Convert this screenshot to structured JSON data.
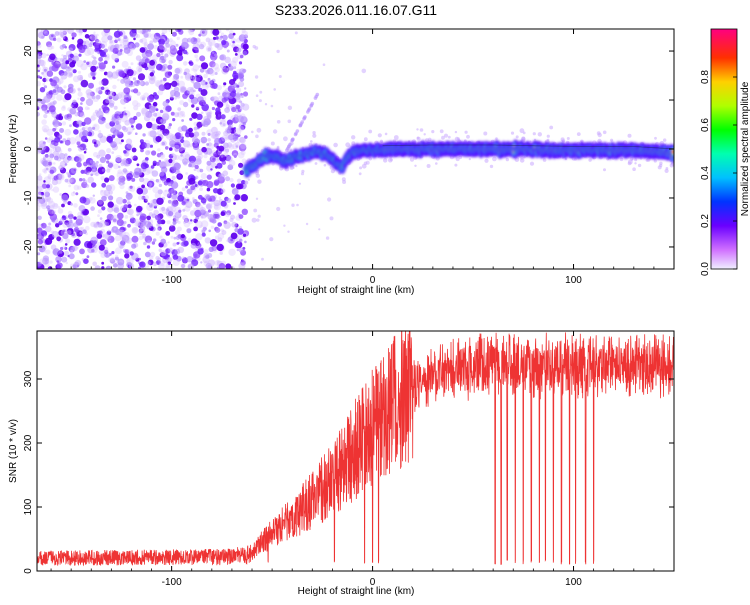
{
  "figure_title": "S233.2026.011.16.07.G11",
  "chart_data": [
    {
      "type": "heatmap",
      "name": "spectrogram",
      "title": "S233.2026.011.16.07.G11",
      "xlabel": "Height of straight line (km)",
      "ylabel": "Frequency (Hz)",
      "xlim": [
        -167,
        150
      ],
      "ylim": [
        -24.5,
        24.5
      ],
      "xticks": [
        -100,
        0,
        100
      ],
      "xtick_labels": [
        "-100",
        "0",
        "100"
      ],
      "yticks": [
        -20,
        -10,
        0,
        10,
        20
      ],
      "ytick_labels": [
        "-20",
        "-10",
        "0",
        "10",
        "20"
      ],
      "noise_region_x": [
        -167,
        -63
      ],
      "signal_track": {
        "x": [
          -63,
          -58,
          -53,
          -48,
          -43,
          -38,
          -33,
          -28,
          -23,
          -18,
          -15,
          -12,
          -8,
          -4,
          0,
          10,
          30,
          60,
          100,
          130,
          150
        ],
        "freq": [
          -4.5,
          -3,
          -1.5,
          -1.5,
          -2.5,
          -1.5,
          -1,
          -0.5,
          -1,
          -3,
          -3.5,
          -1.5,
          -0.5,
          -0.3,
          -0.2,
          -0.1,
          0,
          0,
          -0.3,
          -0.3,
          -0.8
        ]
      },
      "colorbar": {
        "label": "Normalized spectral amplitude",
        "range": [
          0,
          1
        ],
        "ticks": [
          0.0,
          0.2,
          0.4,
          0.6,
          0.8
        ],
        "tick_labels": [
          "0.0",
          "0.2",
          "0.4",
          "0.6",
          "0.8"
        ],
        "colormap": "gist_rainbow_r"
      }
    },
    {
      "type": "line",
      "name": "snr",
      "xlabel": "Height of straight line (km)",
      "ylabel": "SNR (10 * v/v)",
      "xlim": [
        -167,
        150
      ],
      "ylim": [
        0,
        375
      ],
      "xticks": [
        -100,
        0,
        100
      ],
      "xtick_labels": [
        "-100",
        "0",
        "100"
      ],
      "yticks": [
        0,
        100,
        200,
        300
      ],
      "ytick_labels": [
        "0",
        "100",
        "200",
        "300"
      ],
      "color": "#ee3333",
      "trend": {
        "x": [
          -167,
          -70,
          -60,
          -55,
          -45,
          -30,
          -15,
          0,
          10,
          20,
          30,
          40,
          60,
          100,
          150
        ],
        "y": [
          20,
          22,
          28,
          45,
          70,
          110,
          160,
          230,
          262,
          285,
          305,
          315,
          320,
          320,
          322
        ]
      },
      "dropouts_x": [
        -52,
        -19,
        -4,
        0,
        3,
        61,
        64,
        67,
        71,
        75,
        79,
        83,
        86,
        90,
        94,
        98,
        101,
        106,
        110
      ]
    }
  ]
}
